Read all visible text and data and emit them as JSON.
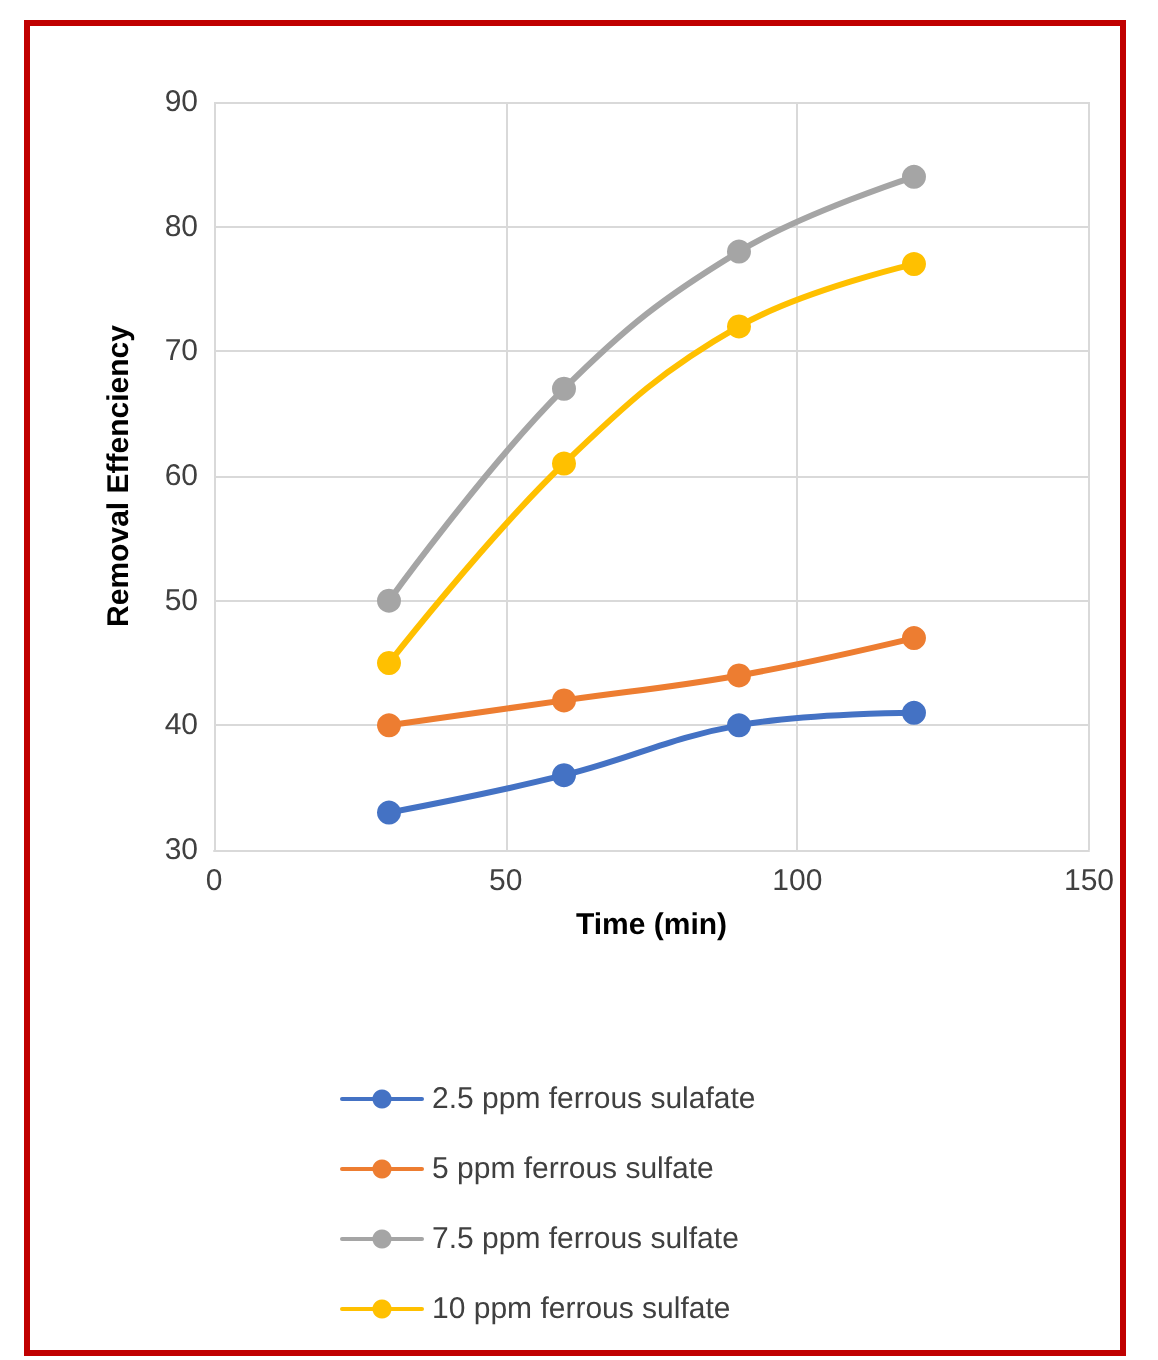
{
  "chart_data": {
    "type": "line",
    "xlabel": "Time (min)",
    "ylabel": "Removal Effenciency",
    "x": [
      30,
      60,
      90,
      120
    ],
    "series": [
      {
        "name": "2.5 ppm ferrous sulafate",
        "color": "#4472c4",
        "values": [
          33,
          36,
          40,
          41
        ]
      },
      {
        "name": "5 ppm ferrous sulfate",
        "color": "#ed7d31",
        "values": [
          40,
          42,
          44,
          47
        ]
      },
      {
        "name": "7.5 ppm ferrous sulfate",
        "color": "#a5a5a5",
        "values": [
          50,
          67,
          78,
          84
        ]
      },
      {
        "name": "10 ppm ferrous sulfate",
        "color": "#ffc000",
        "values": [
          45,
          61,
          72,
          77
        ]
      }
    ],
    "xlim": [
      0,
      150
    ],
    "xticks": [
      0,
      50,
      100,
      150
    ],
    "ylim": [
      30,
      90
    ],
    "yticks": [
      30,
      40,
      50,
      60,
      70,
      80,
      90
    ],
    "grid": true,
    "legend": "bottom",
    "marker": "circle",
    "line_style": "solid"
  }
}
